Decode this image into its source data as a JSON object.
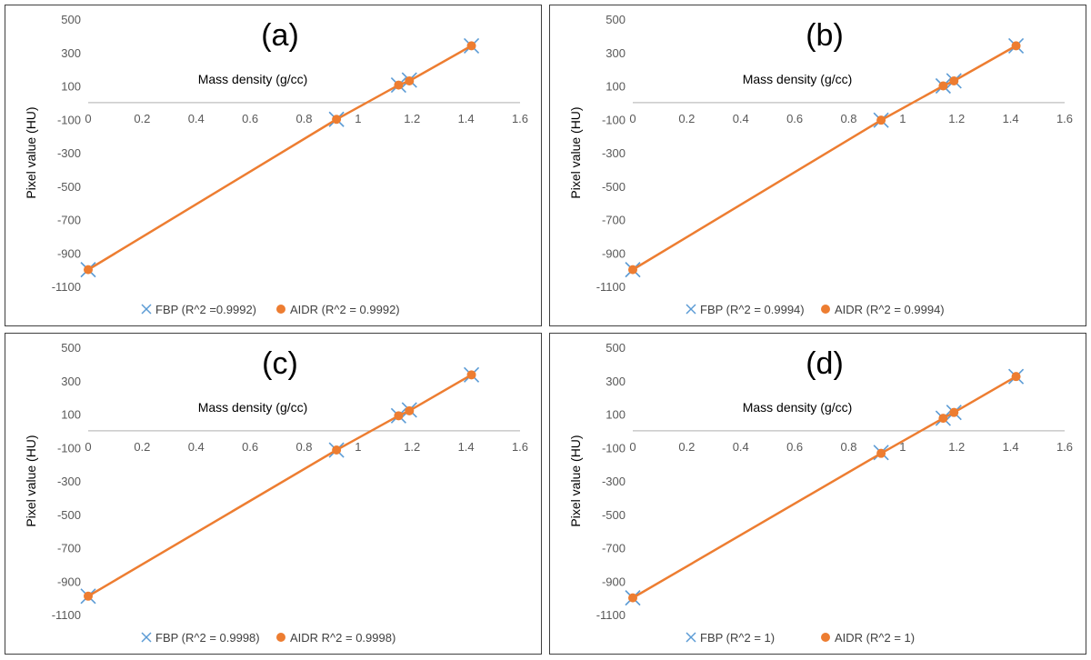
{
  "chart_data": [
    {
      "type": "scatter",
      "title": "(a)",
      "xlabel": "Mass density (g/cc)",
      "ylabel": "Pixel value (HU)",
      "xlim": [
        0,
        1.6
      ],
      "ylim": [
        -1100,
        500
      ],
      "xticks": [
        "0",
        "0.2",
        "0.4",
        "0.6",
        "0.8",
        "1",
        "1.2",
        "1.4",
        "1.6"
      ],
      "yticks": [
        "500",
        "300",
        "100",
        "-100",
        "-300",
        "-500",
        "-700",
        "-900",
        "-1100"
      ],
      "series": [
        {
          "name": "FBP (R^2 =0.9992)",
          "marker": "x",
          "color": "#5b9bd5",
          "x": [
            0.0,
            0.92,
            1.15,
            1.19,
            1.42
          ],
          "y": [
            -1000,
            -100,
            105,
            135,
            340
          ]
        },
        {
          "name": "AIDR (R^2 = 0.9992)",
          "marker": "o",
          "color": "#ed7d31",
          "line": true,
          "x": [
            0.0,
            0.92,
            1.15,
            1.19,
            1.42
          ],
          "y": [
            -1000,
            -100,
            105,
            130,
            340
          ]
        }
      ]
    },
    {
      "type": "scatter",
      "title": "(b)",
      "xlabel": "Mass density (g/cc)",
      "ylabel": "Pixel value (HU)",
      "xlim": [
        0,
        1.6
      ],
      "ylim": [
        -1100,
        500
      ],
      "xticks": [
        "0",
        "0.2",
        "0.4",
        "0.6",
        "0.8",
        "1",
        "1.2",
        "1.4",
        "1.6"
      ],
      "yticks": [
        "500",
        "300",
        "100",
        "-100",
        "-300",
        "-500",
        "-700",
        "-900",
        "-1100"
      ],
      "series": [
        {
          "name": "FBP (R^2 = 0.9994)",
          "marker": "x",
          "color": "#5b9bd5",
          "x": [
            0.0,
            0.92,
            1.15,
            1.19,
            1.42
          ],
          "y": [
            -1000,
            -105,
            100,
            130,
            340
          ]
        },
        {
          "name": "AIDR (R^2 = 0.9994)",
          "marker": "o",
          "color": "#ed7d31",
          "line": true,
          "x": [
            0.0,
            0.92,
            1.15,
            1.19,
            1.42
          ],
          "y": [
            -1000,
            -105,
            100,
            130,
            340
          ]
        }
      ]
    },
    {
      "type": "scatter",
      "title": "(c)",
      "xlabel": "Mass density (g/cc)",
      "ylabel": "Pixel value (HU)",
      "xlim": [
        0,
        1.6
      ],
      "ylim": [
        -1100,
        500
      ],
      "xticks": [
        "0",
        "0.2",
        "0.4",
        "0.6",
        "0.8",
        "1",
        "1.2",
        "1.4",
        "1.6"
      ],
      "yticks": [
        "500",
        "300",
        "100",
        "-100",
        "-300",
        "-500",
        "-700",
        "-900",
        "-1100"
      ],
      "series": [
        {
          "name": "FBP (R^2 = 0.9998)",
          "marker": "x",
          "color": "#5b9bd5",
          "x": [
            0.0,
            0.92,
            1.15,
            1.19,
            1.42
          ],
          "y": [
            -990,
            -115,
            90,
            125,
            335
          ]
        },
        {
          "name": "AIDR R^2 = 0.9998)",
          "marker": "o",
          "color": "#ed7d31",
          "line": true,
          "x": [
            0.0,
            0.92,
            1.15,
            1.19,
            1.42
          ],
          "y": [
            -990,
            -115,
            90,
            120,
            335
          ]
        }
      ]
    },
    {
      "type": "scatter",
      "title": "(d)",
      "xlabel": "Mass density (g/cc)",
      "ylabel": "Pixel value (HU)",
      "xlim": [
        0,
        1.6
      ],
      "ylim": [
        -1100,
        500
      ],
      "xticks": [
        "0",
        "0.2",
        "0.4",
        "0.6",
        "0.8",
        "1",
        "1.2",
        "1.4",
        "1.6"
      ],
      "yticks": [
        "500",
        "300",
        "100",
        "-100",
        "-300",
        "-500",
        "-700",
        "-900",
        "-1100"
      ],
      "series": [
        {
          "name": "FBP (R^2 = 1)",
          "marker": "x",
          "color": "#5b9bd5",
          "x": [
            0.0,
            0.92,
            1.15,
            1.19,
            1.42
          ],
          "y": [
            -1000,
            -130,
            75,
            110,
            325
          ]
        },
        {
          "name": "AIDR (R^2 = 1)",
          "marker": "o",
          "color": "#ed7d31",
          "line": true,
          "x": [
            0.0,
            0.92,
            1.15,
            1.19,
            1.42
          ],
          "y": [
            -1000,
            -135,
            75,
            110,
            325
          ]
        }
      ]
    }
  ]
}
